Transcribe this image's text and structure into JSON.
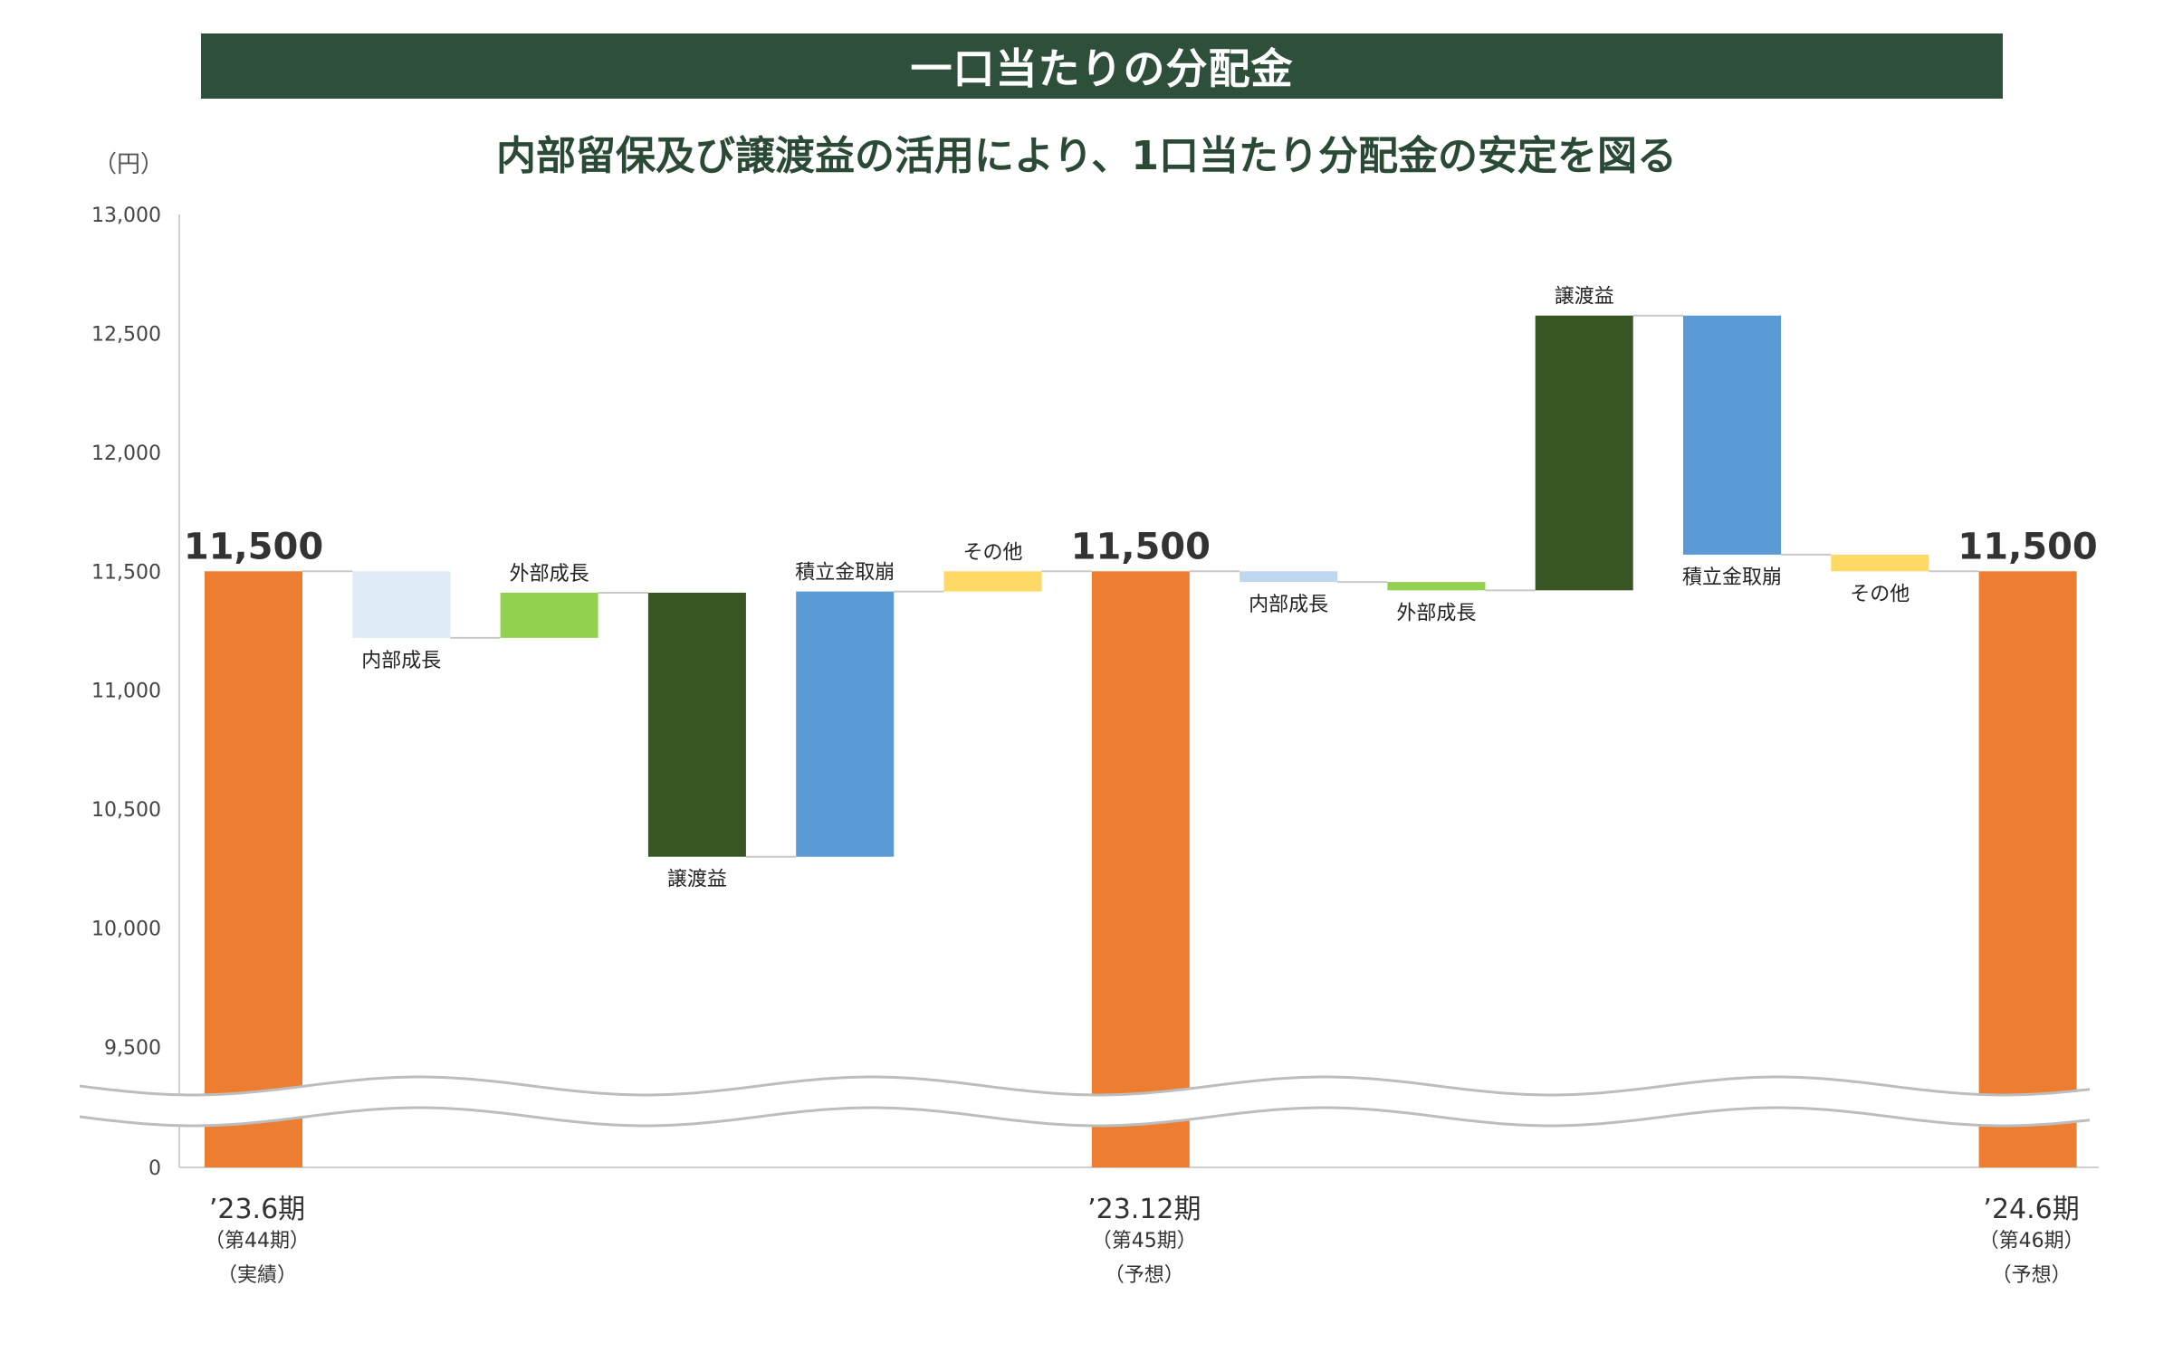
{
  "banner": {
    "title": "一口当たりの分配金"
  },
  "subtitle": "内部留保及び譲渡益の活用により、1口当たり分配金の安定を図る",
  "colors": {
    "total": "#ed7d31",
    "internal_growth_1": "#deebf7",
    "internal_growth_2": "#bdd7ee",
    "external_growth": "#92d050",
    "transfer_gain": "#375623",
    "reserve_reversal": "#5b9bd5",
    "other": "#ffd966",
    "banner": "#2e4f3a",
    "subtitle": "#2b4a36"
  },
  "chart_data": {
    "type": "bar",
    "subtype": "waterfall",
    "title": "一口当たりの分配金",
    "subtitle": "内部留保及び譲渡益の活用により、1口当たり分配金の安定を図る",
    "ylabel": "（円）",
    "ylim": [
      9500,
      13000
    ],
    "axis_break": {
      "between": [
        0,
        9500
      ]
    },
    "yticks": [
      {
        "value": 13000,
        "label": "13,000"
      },
      {
        "value": 12500,
        "label": "12,500"
      },
      {
        "value": 12000,
        "label": "12,000"
      },
      {
        "value": 11500,
        "label": "11,500"
      },
      {
        "value": 11000,
        "label": "11,000"
      },
      {
        "value": 10500,
        "label": "10,500"
      },
      {
        "value": 10000,
        "label": "10,000"
      },
      {
        "value": 9500,
        "label": "9,500"
      },
      {
        "value": 0,
        "label": "0"
      }
    ],
    "bars": [
      {
        "kind": "total",
        "label": "11,500",
        "value": 11500,
        "color": "#ed7d31",
        "category": [
          "’23.6期",
          "（第44期）",
          "（実績）"
        ]
      },
      {
        "kind": "delta",
        "label": "内部成長",
        "from": 11500,
        "to": 11220,
        "color": "#deebf7",
        "label_pos": "below"
      },
      {
        "kind": "delta",
        "label": "外部成長",
        "from": 11220,
        "to": 11410,
        "color": "#92d050",
        "label_pos": "above"
      },
      {
        "kind": "delta",
        "label": "譲渡益",
        "from": 11410,
        "to": 10300,
        "color": "#375623",
        "label_pos": "below"
      },
      {
        "kind": "delta",
        "label": "積立金取崩",
        "from": 10300,
        "to": 11415,
        "color": "#5b9bd5",
        "label_pos": "above"
      },
      {
        "kind": "delta",
        "label": "その他",
        "from": 11415,
        "to": 11500,
        "color": "#ffd966",
        "label_pos": "above"
      },
      {
        "kind": "total",
        "label": "11,500",
        "value": 11500,
        "color": "#ed7d31",
        "category": [
          "’23.12期",
          "（第45期）",
          "（予想）"
        ]
      },
      {
        "kind": "delta",
        "label": "内部成長",
        "from": 11500,
        "to": 11455,
        "color": "#bdd7ee",
        "label_pos": "below"
      },
      {
        "kind": "delta",
        "label": "外部成長",
        "from": 11455,
        "to": 11420,
        "color": "#92d050",
        "label_pos": "below"
      },
      {
        "kind": "delta",
        "label": "譲渡益",
        "from": 11420,
        "to": 12575,
        "color": "#375623",
        "label_pos": "above"
      },
      {
        "kind": "delta",
        "label": "積立金取崩",
        "from": 12575,
        "to": 11570,
        "color": "#5b9bd5",
        "label_pos": "below"
      },
      {
        "kind": "delta",
        "label": "その他",
        "from": 11570,
        "to": 11500,
        "color": "#ffd966",
        "label_pos": "below"
      },
      {
        "kind": "total",
        "label": "11,500",
        "value": 11500,
        "color": "#ed7d31",
        "category": [
          "’24.6期",
          "（第46期）",
          "（予想）"
        ]
      }
    ]
  }
}
